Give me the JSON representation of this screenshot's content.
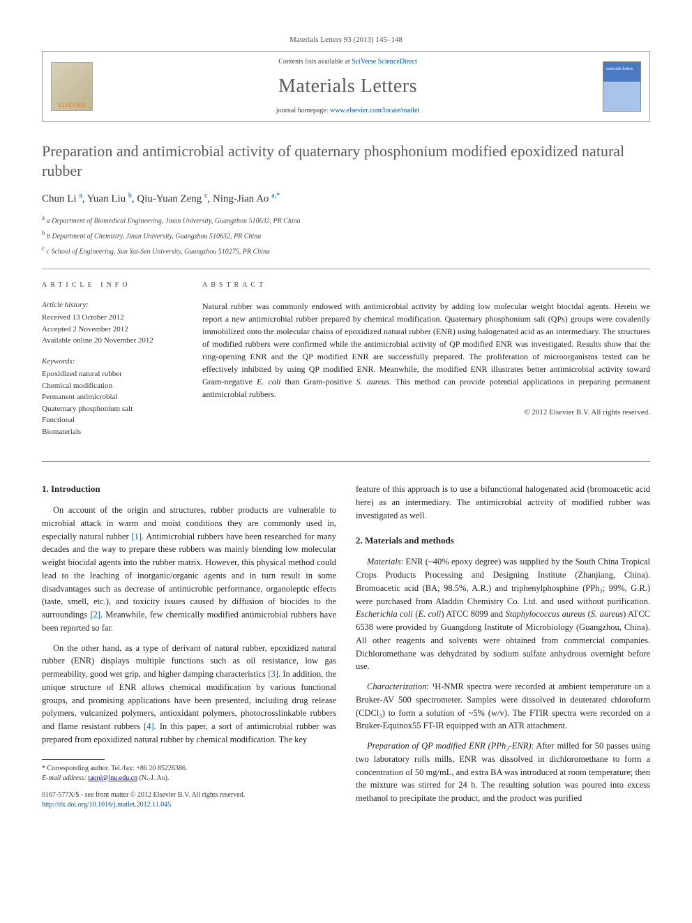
{
  "journal_ref": "Materials Letters 93 (2013) 145–148",
  "header": {
    "contents_prefix": "Contents lists available at ",
    "contents_link": "SciVerse ScienceDirect",
    "journal_name": "Materials Letters",
    "homepage_prefix": "journal homepage: ",
    "homepage_link": "www.elsevier.com/locate/matlet",
    "publisher_logo_label": "ELSEVIER"
  },
  "title": "Preparation and antimicrobial activity of quaternary phosphonium modified epoxidized natural rubber",
  "authors_html": "Chun Li <sup>a</sup>, Yuan Liu <sup>b</sup>, Qiu-Yuan Zeng <sup>c</sup>, Ning-Jian Ao <sup>a,*</sup>",
  "affiliations": [
    "a Department of Biomedical Engineering, Jinan University, Guangzhou 510632, PR China",
    "b Department of Chemistry, Jinan University, Guangzhou 510632, PR China",
    "c School of Engineering, Sun Yat-Sen University, Guangzhou 510275, PR China"
  ],
  "article_info": {
    "label": "ARTICLE INFO",
    "history_head": "Article history:",
    "history": [
      "Received 13 October 2012",
      "Accepted 2 November 2012",
      "Available online 20 November 2012"
    ],
    "keywords_head": "Keywords:",
    "keywords": [
      "Epoxidized natural rubber",
      "Chemical modification",
      "Permanent antimicrobial",
      "Quaternary phosphonium salt",
      "Functional",
      "Biomaterials"
    ]
  },
  "abstract": {
    "label": "ABSTRACT",
    "text": "Natural rubber was commonly endowed with antimicrobial activity by adding low molecular weight biocidal agents. Herein we report a new antimicrobial rubber prepared by chemical modification. Quaternary phosphonium salt (QPs) groups were covalently immobilized onto the molecular chains of epoxidized natural rubber (ENR) using halogenated acid as an intermediary. The structures of modified rubbers were confirmed while the antimicrobial activity of QP modified ENR was investigated. Results show that the ring-opening ENR and the QP modified ENR are successfully prepared. The proliferation of microorganisms tested can be effectively inhibited by using QP modified ENR. Meanwhile, the modified ENR illustrates better antimicrobial activity toward Gram-negative E. coli than Gram-positive S. aureus. This method can provide potential applications in preparing permanent antimicrobial rubbers.",
    "copyright": "© 2012 Elsevier B.V. All rights reserved."
  },
  "sections": {
    "intro_head": "1. Introduction",
    "intro_p1": "On account of the origin and structures, rubber products are vulnerable to microbial attack in warm and moist conditions they are commonly used in, especially natural rubber [1]. Antimicrobial rubbers have been researched for many decades and the way to prepare these rubbers was mainly blending low molecular weight biocidal agents into the rubber matrix. However, this physical method could lead to the leaching of inorganic/organic agents and in turn result in some disadvantages such as decrease of antimicrobic performance, organoleptic effects (taste, smell, etc.), and toxicity issues caused by diffusion of biocides to the surroundings [2]. Meanwhile, few chemically modified antimicrobial rubbers have been reported so far.",
    "intro_p2": "On the other hand, as a type of derivant of natural rubber, epoxidized natural rubber (ENR) displays multiple functions such as oil resistance, low gas permeability, good wet grip, and higher damping characteristics [3]. In addition, the unique structure of ENR allows chemical modification by various functional groups, and promising applications have been presented, including drug release polymers, vulcanized polymers, antioxidant polymers, photocrosslinkable rubbers and flame resistant rubbers [4]. In this paper, a sort of antimicrobial rubber was prepared from epoxidized natural rubber by chemical modification. The key",
    "intro_p2_cont": "feature of this approach is to use a bifunctional halogenated acid (bromoacetic acid here) as an intermediary. The antimicrobial activity of modified rubber was investigated as well.",
    "methods_head": "2. Materials and methods",
    "methods_p1": "Materials: ENR (~40% epoxy degree) was supplied by the South China Tropical Crops Products Processing and Designing Institute (Zhanjiang, China). Bromoacetic acid (BA; 98.5%, A.R.) and triphenylphosphine (PPh₃; 99%, G.R.) were purchased from Aladdin Chemistry Co. Ltd. and used without purification. Escherichia coli (E. coli) ATCC 8099 and Staphylococcus aureus (S. aureus) ATCC 6538 were provided by Guangdong Institute of Microbiology (Guangzhou, China). All other reagents and solvents were obtained from commercial companies. Dichloromethane was dehydrated by sodium sulfate anhydrous overnight before use.",
    "methods_p2": "Characterization: ¹H-NMR spectra were recorded at ambient temperature on a Bruker-AV 500 spectrometer. Samples were dissolved in deuterated chloroform (CDCl₃) to form a solution of ~5% (w/v). The FTIR spectra were recorded on a Bruker-Equinox55 FT-IR equipped with an ATR attachment.",
    "methods_p3": "Preparation of QP modified ENR (PPh₃-ENR): After milled for 50 passes using two laboratory rolls mills, ENR was dissolved in dichloromethane to form a concentration of 50 mg/mL, and extra BA was introduced at room temperature; then the mixture was stirred for 24 h. The resulting solution was poured into excess methanol to precipitate the product, and the product was purified"
  },
  "footnote": {
    "corresp": "* Corresponding author. Tel./fax: +86 20 85226386.",
    "email_label": "E-mail address:",
    "email": "taonj@jnu.edu.cn",
    "email_person": "(N.-J. Ao)."
  },
  "bottom": {
    "issn": "0167-577X/$ - see front matter © 2012 Elsevier B.V. All rights reserved.",
    "doi": "http://dx.doi.org/10.1016/j.matlet.2012.11.045"
  },
  "refs": {
    "r1": "[1]",
    "r2": "[2]",
    "r3": "[3]",
    "r4": "[4]"
  }
}
